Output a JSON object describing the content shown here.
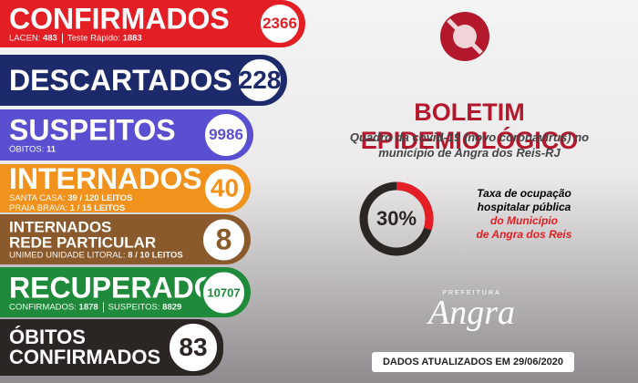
{
  "rows": [
    {
      "title": [
        "CONFIRMADOS"
      ],
      "count": 2366,
      "color": "#e31e24",
      "details": [
        [
          {
            "label": "LACEN:",
            "value": 483
          },
          {
            "label": "Teste Rápido:",
            "value": 1883
          }
        ]
      ]
    },
    {
      "title": [
        "DESCARTADOS"
      ],
      "count": 228,
      "color": "#1c2a6b",
      "details": []
    },
    {
      "title": [
        "SUSPEITOS"
      ],
      "count": 9986,
      "color": "#5a4fd0",
      "details": [
        [
          {
            "label": "ÓBITOS:",
            "value": 11
          }
        ]
      ]
    },
    {
      "title": [
        "INTERNADOS"
      ],
      "count": 40,
      "color": "#f0921c",
      "details": [
        [
          {
            "label": "SANTA CASA:",
            "value": "39 / 120 LEITOS"
          }
        ],
        [
          {
            "label": "PRAIA BRAVA:",
            "value": "1 / 15 LEITOS"
          }
        ]
      ]
    },
    {
      "title": [
        "INTERNADOS",
        "REDE PARTICULAR"
      ],
      "count": 8,
      "color": "#8a5a2c",
      "details": [
        [
          {
            "label": "UNIMED UNIDADE LITORAL:",
            "value": "8 / 10 LEITOS"
          }
        ]
      ]
    },
    {
      "title": [
        "RECUPERADOS"
      ],
      "count": 10707,
      "color": "#1e8a3a",
      "details": [
        [
          {
            "label": "CONFIRMADOS:",
            "value": 1878
          },
          {
            "label": "SUSPEITOS:",
            "value": 8829
          }
        ]
      ]
    },
    {
      "title": [
        "ÓBITOS",
        "CONFIRMADOS"
      ],
      "count": 83,
      "color": "#2b2523",
      "details": []
    }
  ],
  "header": {
    "title": "BOLETIM EPIDEMIOLÓGICO",
    "subtitle": [
      "Quadro da covid-19 (novo coronavírus) no",
      "município de Angra dos Reis-RJ"
    ]
  },
  "gauge": {
    "value": 30,
    "label": "30%",
    "text": [
      "Taxa de ocupação",
      "hospitalar pública"
    ],
    "highlight": [
      "do Município",
      "de Angra dos Reis"
    ]
  },
  "logo": {
    "top": "PREFEITURA",
    "name": "Angra"
  },
  "footer": "DADOS ATUALIZADOS EM 29/06/2020"
}
